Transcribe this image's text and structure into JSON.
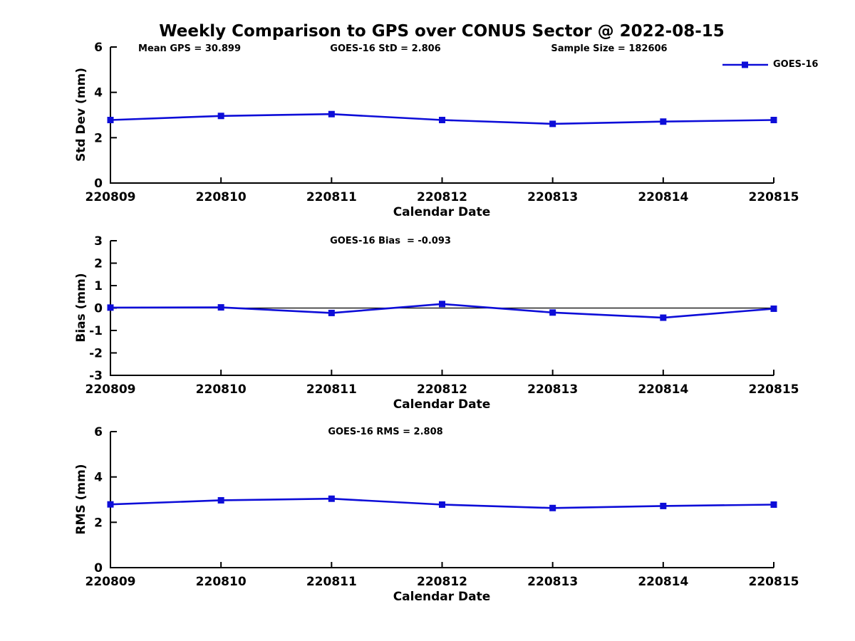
{
  "page_title": "Weekly Comparison to GPS over CONUS Sector @ 2022-08-15",
  "legend": {
    "label": "GOES-16"
  },
  "colors": {
    "series": "#0d0dd8",
    "axis": "#000000",
    "zero_line": "#000000",
    "text": "#000000"
  },
  "chart_data": [
    {
      "type": "line",
      "series_name": "GOES-16",
      "annotations": {
        "left": "Mean GPS = 30.899",
        "center": "GOES-16 StD = 2.806",
        "right": "Sample Size = 182606"
      },
      "xlabel": "Calendar Date",
      "ylabel": "Std Dev (mm)",
      "categories": [
        "220809",
        "220810",
        "220811",
        "220812",
        "220813",
        "220814",
        "220815"
      ],
      "values": [
        2.78,
        2.96,
        3.04,
        2.78,
        2.61,
        2.71,
        2.78
      ],
      "ylim": [
        0,
        6
      ],
      "yticks": [
        0,
        2,
        4,
        6
      ],
      "grid": false,
      "legend_position": "top-right",
      "marker": "square"
    },
    {
      "type": "line",
      "series_name": "GOES-16",
      "annotations": {
        "center": "GOES-16 Bias  = -0.093"
      },
      "xlabel": "Calendar Date",
      "ylabel": "Bias (mm)",
      "categories": [
        "220809",
        "220810",
        "220811",
        "220812",
        "220813",
        "220814",
        "220815"
      ],
      "values": [
        0.02,
        0.03,
        -0.22,
        0.18,
        -0.2,
        -0.43,
        -0.03
      ],
      "ylim": [
        -3,
        3
      ],
      "yticks": [
        -3,
        -2,
        -1,
        0,
        1,
        2,
        3
      ],
      "zero_line": true,
      "grid": false,
      "marker": "square"
    },
    {
      "type": "line",
      "series_name": "GOES-16",
      "annotations": {
        "center": "GOES-16 RMS = 2.808"
      },
      "xlabel": "Calendar Date",
      "ylabel": "RMS (mm)",
      "categories": [
        "220809",
        "220810",
        "220811",
        "220812",
        "220813",
        "220814",
        "220815"
      ],
      "values": [
        2.79,
        2.97,
        3.04,
        2.78,
        2.63,
        2.72,
        2.78
      ],
      "ylim": [
        0,
        6
      ],
      "yticks": [
        0,
        2,
        4,
        6
      ],
      "grid": false,
      "marker": "square"
    }
  ]
}
